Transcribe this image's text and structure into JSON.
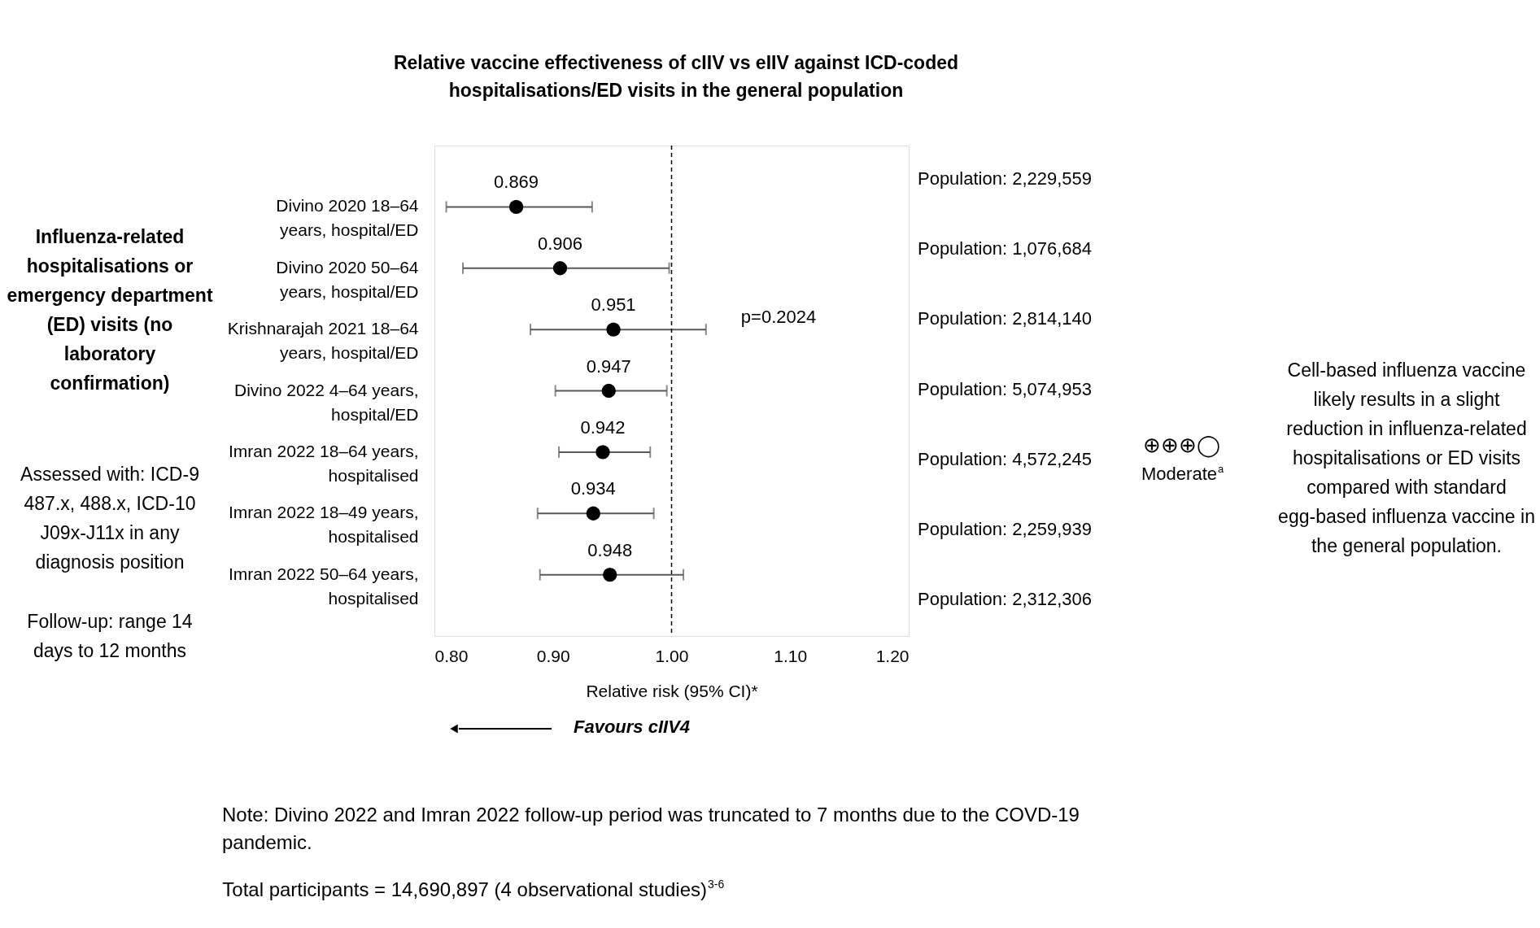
{
  "chart_data": {
    "type": "scatter",
    "title": "Relative vaccine effectiveness of cIIV vs eIIV against ICD-coded hospitalisations/ED visits in the general population",
    "xlabel": "Relative risk (95% CI)*",
    "categories": [
      "Divino 2020 18–64 years, hospital/ED",
      "Divino 2020 50–64 years, hospital/ED",
      "Krishnarajah 2021 18–64 years, hospital/ED",
      "Divino 2022 4–64 years, hospital/ED",
      "Imran 2022 18–64 years, hospitalised",
      "Imran 2022 18–49 years, hospitalised",
      "Imran 2022 50–64 years, hospitalised"
    ],
    "orientation": "horizontal",
    "series": [
      {
        "color": "#000000",
        "values": [
          0.869,
          0.906,
          0.951,
          0.947,
          0.942,
          0.934,
          0.948
        ],
        "errors": [
          [
            0.81,
            0.933
          ],
          [
            0.824,
            0.998
          ],
          [
            0.881,
            1.029
          ],
          [
            0.902,
            0.996
          ],
          [
            0.905,
            0.982
          ],
          [
            0.887,
            0.985
          ],
          [
            0.889,
            1.01
          ]
        ]
      }
    ],
    "data_labels": true,
    "marker": "circle",
    "grid": false,
    "xlim": [
      0.8,
      1.2
    ],
    "xticks": [
      {
        "value": 0.8,
        "label": "0.80"
      },
      {
        "value": 0.9,
        "label": "0.90"
      },
      {
        "value": 1.0,
        "label": "1.00"
      },
      {
        "value": 1.1,
        "label": "1.10"
      },
      {
        "value": 1.2,
        "label": "1.20"
      }
    ],
    "ref_lines": [
      {
        "axis": "x",
        "value": 1.0,
        "line_style": "dashed",
        "color": "#000000"
      }
    ],
    "annotations": [
      "p=0.2024",
      "Favours cIIV4",
      "Influenza-related hospitalisations or emergency department (ED) visits (no laboratory confirmation)",
      "Assessed with: ICD-9 487.x, 488.x, ICD-10 J09x-J11x in any diagnosis position",
      "Follow-up: range 14 days to 12 months",
      "⊕⊕⊕◯",
      "Moderate$^{a}$",
      "Cell-based influenza vaccine likely results in a slight reduction in influenza-related hospitalisations or ED visits compared with standard egg-based influenza vaccine in the general population.",
      "Note: Divino 2022 and Imran 2022 follow-up period was truncated to 7 months due to the COVD-19 pandemic.",
      "Total participants = 14,690,897 (4 observational studies)$^{3-6}$",
      "Population: 2,229,559",
      "Population: 1,076,684",
      "Population: 2,814,140",
      "Population: 5,074,953",
      "Population: 4,572,245",
      "Population: 2,259,939",
      "Population: 2,312,306"
    ]
  }
}
